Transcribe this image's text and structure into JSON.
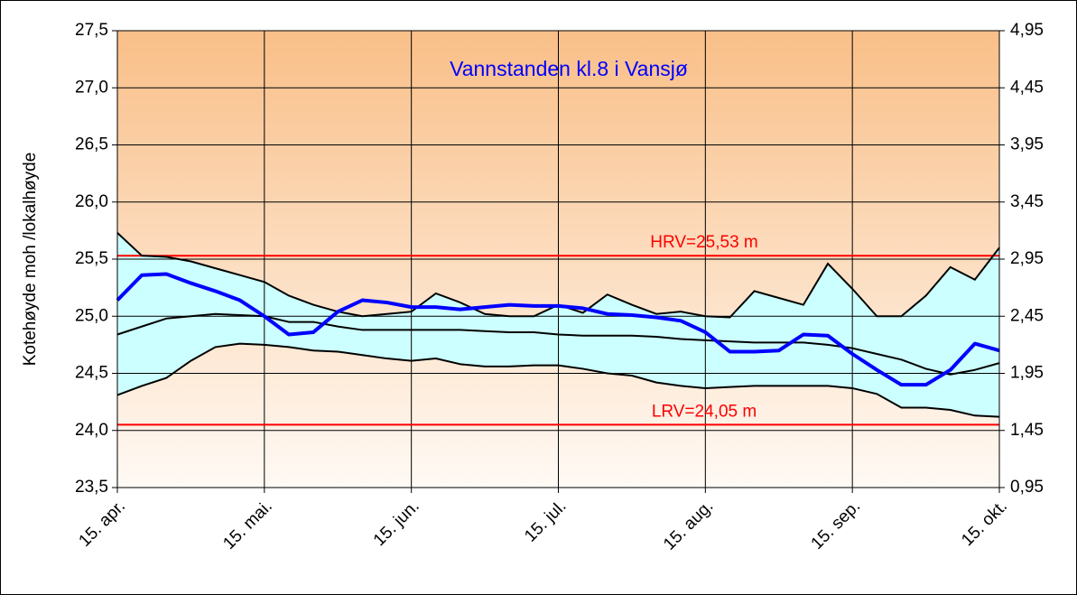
{
  "chart_data": {
    "type": "line",
    "title": "Vannstanden kl.8 i Vansjø",
    "y_label": "Kotehøyde moh /lokalhøyde",
    "categories": [
      "15. apr.",
      null,
      null,
      null,
      null,
      null,
      "15. mai.",
      null,
      null,
      null,
      null,
      null,
      "15. jun.",
      null,
      null,
      null,
      null,
      null,
      "15. jul.",
      null,
      null,
      null,
      null,
      null,
      "15. aug.",
      null,
      null,
      null,
      null,
      null,
      "15. sep.",
      null,
      null,
      null,
      null,
      null,
      "15. okt."
    ],
    "ylim": [
      23.5,
      27.5
    ],
    "yticks": [
      {
        "value": 23.5,
        "label": "23,5"
      },
      {
        "value": 24,
        "label": "24,0"
      },
      {
        "value": 24.5,
        "label": "24,5"
      },
      {
        "value": 25,
        "label": "25,0"
      },
      {
        "value": 25.5,
        "label": "25,5"
      },
      {
        "value": 26,
        "label": "26,0"
      },
      {
        "value": 26.5,
        "label": "26,5"
      },
      {
        "value": 27,
        "label": "27,0"
      },
      {
        "value": 27.5,
        "label": "27,5"
      }
    ],
    "y2lim": [
      0.95,
      4.95
    ],
    "y2ticks": [
      {
        "value": 0.95,
        "label": "0,95"
      },
      {
        "value": 1.45,
        "label": "1,45"
      },
      {
        "value": 1.95,
        "label": "1,95"
      },
      {
        "value": 2.45,
        "label": "2,45"
      },
      {
        "value": 2.95,
        "label": "2,95"
      },
      {
        "value": 3.45,
        "label": "3,45"
      },
      {
        "value": 3.95,
        "label": "3,95"
      },
      {
        "value": 4.45,
        "label": "4,45"
      },
      {
        "value": 4.95,
        "label": "4,95"
      }
    ],
    "grid": true,
    "band": {
      "color": "#ccffff",
      "line_color": "#000000",
      "upper": [
        25.73,
        25.53,
        25.52,
        25.48,
        25.42,
        25.36,
        25.3,
        25.18,
        25.1,
        25.04,
        25.0,
        25.02,
        25.04,
        25.2,
        25.12,
        25.02,
        25.0,
        25.0,
        25.1,
        25.03,
        25.19,
        25.1,
        25.02,
        25.04,
        25.0,
        24.99,
        25.22,
        25.16,
        25.1,
        25.46,
        25.24,
        25.0,
        25.0,
        25.18,
        25.43,
        25.32,
        25.6
      ],
      "lower": [
        24.31,
        24.39,
        24.46,
        24.61,
        24.73,
        24.76,
        24.75,
        24.73,
        24.7,
        24.69,
        24.66,
        24.63,
        24.61,
        24.63,
        24.58,
        24.56,
        24.56,
        24.57,
        24.57,
        24.54,
        24.5,
        24.48,
        24.42,
        24.39,
        24.37,
        24.38,
        24.39,
        24.39,
        24.39,
        24.39,
        24.37,
        24.32,
        24.2,
        24.2,
        24.18,
        24.13,
        24.12
      ]
    },
    "series": [
      {
        "color": "#000000",
        "width": 2,
        "values": [
          24.84,
          24.91,
          24.98,
          25.0,
          25.02,
          25.01,
          25.0,
          24.95,
          24.95,
          24.91,
          24.88,
          24.88,
          24.88,
          24.88,
          24.88,
          24.87,
          24.86,
          24.86,
          24.84,
          24.83,
          24.83,
          24.83,
          24.82,
          24.8,
          24.79,
          24.78,
          24.77,
          24.77,
          24.77,
          24.75,
          24.72,
          24.67,
          24.62,
          24.54,
          24.49,
          24.53,
          24.59
        ]
      },
      {
        "color": "#0000ff",
        "width": 4,
        "values": [
          25.14,
          25.36,
          25.37,
          25.29,
          25.22,
          25.14,
          25.0,
          24.84,
          24.86,
          25.04,
          25.14,
          25.12,
          25.08,
          25.08,
          25.06,
          25.08,
          25.1,
          25.09,
          25.09,
          25.07,
          25.02,
          25.01,
          24.99,
          24.96,
          24.86,
          24.69,
          24.69,
          24.7,
          24.84,
          24.83,
          24.67,
          24.53,
          24.4,
          24.4,
          24.53,
          24.76,
          24.7
        ]
      }
    ],
    "reference_lines": [
      {
        "value": 25.53,
        "label": "HRV=25,53 m",
        "color": "#ff0000"
      },
      {
        "value": 24.05,
        "label": "LRV=24,05 m",
        "color": "#ff0000"
      }
    ]
  }
}
